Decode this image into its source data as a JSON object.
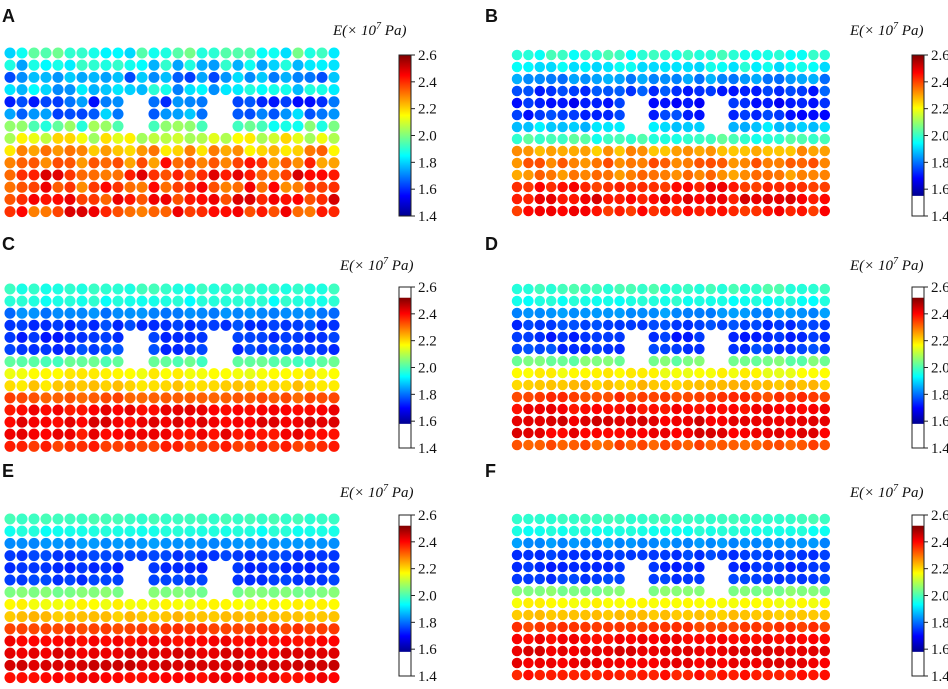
{
  "chart_data": [
    {
      "type": "scatter",
      "panel": "A",
      "title": "",
      "colorbar": {
        "label_main": "E(× 10",
        "label_exp": "7",
        "label_unit": " Pa)",
        "ticks": [
          "2.6",
          "2.4",
          "2.2",
          "2.0",
          "1.8",
          "1.6",
          "1.4"
        ],
        "vmin": 1.4,
        "vmax": 2.6,
        "colored_range": [
          1.4,
          2.6
        ]
      },
      "grid": {
        "cols": 28,
        "rows": 14
      },
      "holes": [
        {
          "col": 10.5,
          "row": 5.3
        },
        {
          "col": 17.5,
          "row": 5.3
        }
      ],
      "row_values": [
        1.9,
        1.82,
        1.72,
        1.8,
        1.65,
        1.72,
        1.95,
        2.1,
        2.25,
        2.35,
        2.4,
        2.38,
        2.42,
        2.4
      ],
      "noise": 0.1
    },
    {
      "type": "scatter",
      "panel": "B",
      "title": "",
      "colorbar": {
        "label_main": "E(× 10",
        "label_exp": "7",
        "label_unit": " Pa)",
        "ticks": [
          "2.6",
          "2.4",
          "2.2",
          "2.0",
          "1.8",
          "1.6",
          "1.4"
        ],
        "vmin": 1.4,
        "vmax": 2.6,
        "colored_range": [
          1.55,
          2.6
        ]
      },
      "grid": {
        "cols": 28,
        "rows": 14
      },
      "holes": [
        {
          "col": 10.5,
          "row": 5.3
        },
        {
          "col": 17.5,
          "row": 5.3
        }
      ],
      "row_values": [
        1.9,
        1.85,
        1.72,
        1.62,
        1.58,
        1.6,
        1.8,
        1.92,
        2.25,
        2.32,
        2.3,
        2.42,
        2.45,
        2.42
      ],
      "noise": 0.05
    },
    {
      "type": "scatter",
      "panel": "C",
      "title": "",
      "colorbar": {
        "label_main": "E(× 10",
        "label_exp": "7",
        "label_unit": " Pa)",
        "ticks": [
          "2.6",
          "2.4",
          "2.2",
          "2.0",
          "1.8",
          "1.6",
          "1.4"
        ],
        "vmin": 1.4,
        "vmax": 2.6,
        "colored_range": [
          1.58,
          2.52
        ]
      },
      "grid": {
        "cols": 28,
        "rows": 14
      },
      "holes": [
        {
          "col": 10.5,
          "row": 5.3
        },
        {
          "col": 17.5,
          "row": 5.3
        }
      ],
      "row_values": [
        1.9,
        1.88,
        1.7,
        1.62,
        1.6,
        1.62,
        1.95,
        2.15,
        2.2,
        2.35,
        2.45,
        2.47,
        2.45,
        2.4
      ],
      "noise": 0.03
    },
    {
      "type": "scatter",
      "panel": "D",
      "title": "",
      "colorbar": {
        "label_main": "E(× 10",
        "label_exp": "7",
        "label_unit": " Pa)",
        "ticks": [
          "2.6",
          "2.4",
          "2.2",
          "2.0",
          "1.8",
          "1.6",
          "1.4"
        ],
        "vmin": 1.4,
        "vmax": 2.6,
        "colored_range": [
          1.58,
          2.52
        ]
      },
      "grid": {
        "cols": 28,
        "rows": 14
      },
      "holes": [
        {
          "col": 10.5,
          "row": 5.3
        },
        {
          "col": 17.5,
          "row": 5.3
        }
      ],
      "row_values": [
        1.92,
        1.88,
        1.72,
        1.62,
        1.6,
        1.62,
        1.98,
        2.15,
        2.22,
        2.38,
        2.45,
        2.48,
        2.47,
        2.35
      ],
      "noise": 0.03
    },
    {
      "type": "scatter",
      "panel": "E",
      "title": "",
      "colorbar": {
        "label_main": "E(× 10",
        "label_exp": "7",
        "label_unit": " Pa)",
        "ticks": [
          "2.6",
          "2.4",
          "2.2",
          "2.0",
          "1.8",
          "1.6",
          "1.4"
        ],
        "vmin": 1.4,
        "vmax": 2.6,
        "colored_range": [
          1.58,
          2.52
        ]
      },
      "grid": {
        "cols": 28,
        "rows": 14
      },
      "holes": [
        {
          "col": 10.5,
          "row": 5.3
        },
        {
          "col": 17.5,
          "row": 5.3
        }
      ],
      "row_values": [
        1.92,
        1.88,
        1.72,
        1.62,
        1.6,
        1.62,
        2.0,
        2.15,
        2.22,
        2.38,
        2.45,
        2.48,
        2.5,
        2.45
      ],
      "noise": 0.02
    },
    {
      "type": "scatter",
      "panel": "F",
      "title": "",
      "colorbar": {
        "label_main": "E(× 10",
        "label_exp": "7",
        "label_unit": " Pa)",
        "ticks": [
          "2.6",
          "2.4",
          "2.2",
          "2.0",
          "1.8",
          "1.6",
          "1.4"
        ],
        "vmin": 1.4,
        "vmax": 2.6,
        "colored_range": [
          1.58,
          2.52
        ]
      },
      "grid": {
        "cols": 28,
        "rows": 14
      },
      "holes": [
        {
          "col": 10.5,
          "row": 5.3
        },
        {
          "col": 17.5,
          "row": 5.3
        }
      ],
      "row_values": [
        1.92,
        1.88,
        1.72,
        1.62,
        1.6,
        1.62,
        2.0,
        2.15,
        2.22,
        2.38,
        2.45,
        2.48,
        2.47,
        2.42
      ],
      "noise": 0.02
    }
  ]
}
